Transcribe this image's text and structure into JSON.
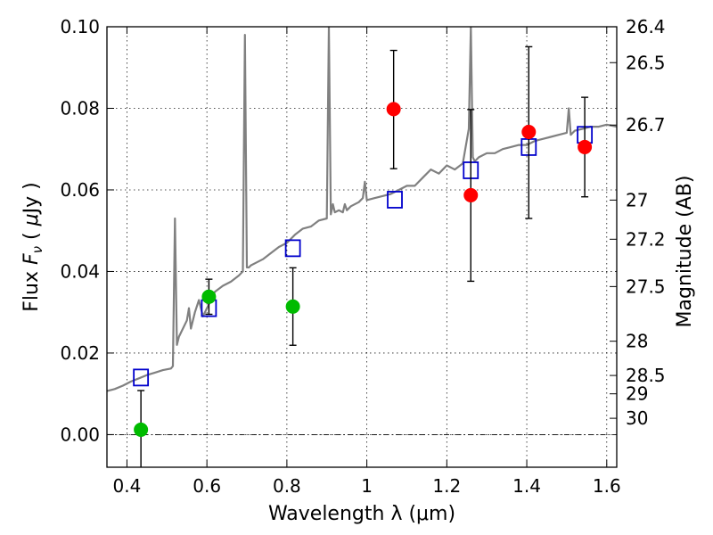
{
  "chart_data": {
    "type": "scatter",
    "xlabel": "Wavelength  λ (μm)",
    "ylabel": "Flux  F_ν  ( μJy )",
    "ylabel_parts": [
      "Flux  ",
      "F",
      "ν",
      "  ( ",
      "μ",
      "Jy )"
    ],
    "y2label": "Magnitude (AB)",
    "xlim": [
      0.35,
      1.625
    ],
    "ylim": [
      -0.008,
      0.1
    ],
    "x_ticks": [
      0.4,
      0.6,
      0.8,
      1.0,
      1.2,
      1.4,
      1.6
    ],
    "x_tick_labels": [
      "0.4",
      "0.6",
      "0.8",
      "1",
      "1.2",
      "1.4",
      "1.6"
    ],
    "y_ticks": [
      0.0,
      0.02,
      0.04,
      0.06,
      0.08,
      0.1
    ],
    "y_tick_labels": [
      "0.00",
      "0.02",
      "0.04",
      "0.06",
      "0.08",
      "0.10"
    ],
    "y2_ticks": [
      {
        "label": "26.4",
        "flux": 0.1
      },
      {
        "label": "26.5",
        "flux": 0.0912
      },
      {
        "label": "26.7",
        "flux": 0.0759
      },
      {
        "label": "27",
        "flux": 0.0575
      },
      {
        "label": "27.2",
        "flux": 0.0479
      },
      {
        "label": "27.5",
        "flux": 0.0363
      },
      {
        "label": "28",
        "flux": 0.0229
      },
      {
        "label": "28.5",
        "flux": 0.0145
      },
      {
        "label": "29",
        "flux": 0.01
      },
      {
        "label": "30",
        "flux": 0.004
      }
    ],
    "grid": true,
    "series": [
      {
        "kind": "line",
        "color": "#808080",
        "x": [
          0.35,
          0.37,
          0.39,
          0.41,
          0.43,
          0.45,
          0.47,
          0.49,
          0.51,
          0.515,
          0.52,
          0.525,
          0.53,
          0.55,
          0.555,
          0.56,
          0.57,
          0.58,
          0.585,
          0.59,
          0.6,
          0.62,
          0.64,
          0.66,
          0.68,
          0.69,
          0.695,
          0.7,
          0.705,
          0.71,
          0.72,
          0.74,
          0.76,
          0.78,
          0.8,
          0.82,
          0.84,
          0.86,
          0.88,
          0.9,
          0.905,
          0.91,
          0.915,
          0.92,
          0.93,
          0.94,
          0.945,
          0.95,
          0.96,
          0.98,
          0.99,
          0.995,
          1.0,
          1.02,
          1.04,
          1.06,
          1.08,
          1.1,
          1.12,
          1.14,
          1.16,
          1.18,
          1.2,
          1.22,
          1.24,
          1.255,
          1.26,
          1.265,
          1.27,
          1.28,
          1.3,
          1.32,
          1.34,
          1.36,
          1.38,
          1.4,
          1.42,
          1.44,
          1.46,
          1.48,
          1.5,
          1.505,
          1.51,
          1.52,
          1.54,
          1.56,
          1.58,
          1.6,
          1.625
        ],
        "y": [
          0.0107,
          0.0112,
          0.012,
          0.013,
          0.0138,
          0.0146,
          0.0152,
          0.0158,
          0.0162,
          0.0168,
          0.053,
          0.022,
          0.024,
          0.028,
          0.031,
          0.026,
          0.03,
          0.033,
          0.031,
          0.029,
          0.031,
          0.035,
          0.0365,
          0.0375,
          0.039,
          0.04,
          0.098,
          0.041,
          0.041,
          0.0415,
          0.042,
          0.043,
          0.0445,
          0.046,
          0.047,
          0.049,
          0.0505,
          0.051,
          0.0525,
          0.053,
          0.1,
          0.054,
          0.0565,
          0.0545,
          0.055,
          0.0545,
          0.0565,
          0.055,
          0.056,
          0.057,
          0.058,
          0.062,
          0.0575,
          0.058,
          0.0585,
          0.059,
          0.06,
          0.061,
          0.061,
          0.063,
          0.065,
          0.064,
          0.066,
          0.065,
          0.0665,
          0.075,
          0.1,
          0.068,
          0.067,
          0.068,
          0.069,
          0.069,
          0.07,
          0.0705,
          0.071,
          0.071,
          0.072,
          0.0725,
          0.073,
          0.0735,
          0.074,
          0.08,
          0.0735,
          0.0745,
          0.075,
          0.0755,
          0.0755,
          0.076,
          0.0755
        ]
      },
      {
        "kind": "marker-square",
        "color": "#0000cc",
        "points": [
          [
            0.435,
            0.014
          ],
          [
            0.605,
            0.031
          ],
          [
            0.815,
            0.0457
          ],
          [
            1.07,
            0.0576
          ],
          [
            1.26,
            0.0648
          ],
          [
            1.405,
            0.0705
          ],
          [
            1.545,
            0.0735
          ]
        ]
      },
      {
        "kind": "marker-circle",
        "color": "#00bb00",
        "points": [
          [
            0.435,
            0.0012
          ],
          [
            0.605,
            0.0338
          ],
          [
            0.815,
            0.0314
          ]
        ],
        "errors": [
          [
            -0.009,
            0.0108
          ],
          [
            0.0295,
            0.0381
          ],
          [
            0.0219,
            0.0409
          ]
        ]
      },
      {
        "kind": "marker-circle",
        "color": "#ff0000",
        "points": [
          [
            1.067,
            0.0798
          ],
          [
            1.26,
            0.0587
          ],
          [
            1.405,
            0.0742
          ],
          [
            1.545,
            0.0705
          ]
        ],
        "errors": [
          [
            0.0652,
            0.0942
          ],
          [
            0.0376,
            0.0797
          ],
          [
            0.053,
            0.0951
          ],
          [
            0.0583,
            0.0827
          ]
        ]
      }
    ],
    "hline": {
      "y": 0.0,
      "style": "dashdot",
      "color": "#000000"
    }
  }
}
